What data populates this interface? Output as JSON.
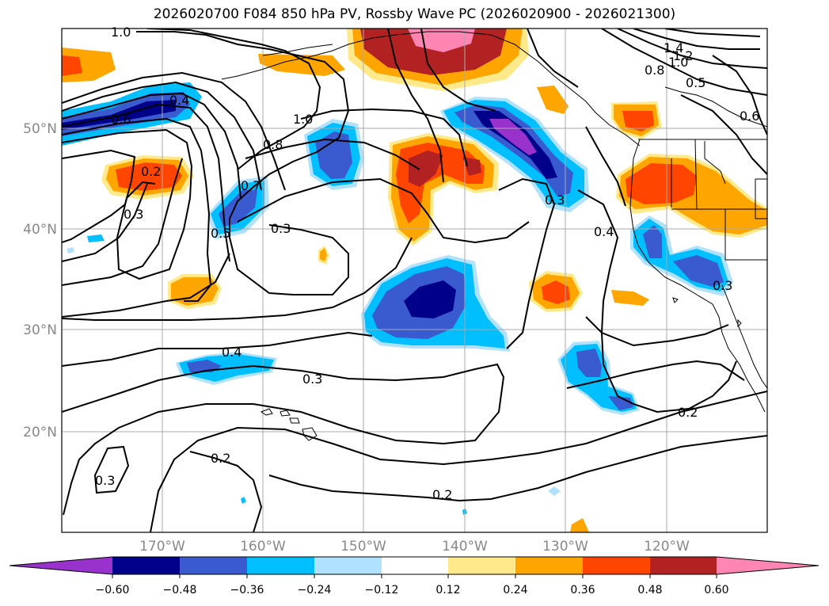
{
  "title": "2026020700 F084 850 hPa PV, Rossby Wave PC (2026020900 - 2026021300)",
  "colors": {
    "neg_060": "#9932cc",
    "neg_048": "#00008b",
    "neg_036": "#3a5bcf",
    "neg_024": "#00bfff",
    "neg_012": "#b0e2ff",
    "zero": "#ffffff",
    "pos_012": "#ffe98a",
    "pos_024": "#ffa500",
    "pos_036": "#ff4500",
    "pos_048": "#b22222",
    "pos_060": "#ff85b3",
    "contour": "#000000",
    "grid": "#aaaaaa",
    "coast": "#000000"
  },
  "lat_labels": [
    "50°N",
    "40°N",
    "30°N",
    "20°N"
  ],
  "lon_labels": [
    "170°W",
    "160°W",
    "150°W",
    "140°W",
    "130°W",
    "120°W"
  ],
  "colorbar_ticks": [
    "−0.60",
    "−0.48",
    "−0.36",
    "−0.24",
    "−0.12",
    "0.12",
    "0.24",
    "0.36",
    "0.48",
    "0.60"
  ],
  "contour_labels": {
    "l1": "1.0",
    "l2": "0.6",
    "l3": "0.4",
    "l4": "0.2",
    "l5": "0.3",
    "l6": "0.5",
    "l7": "0.7",
    "l8": "0.8",
    "l9": "1.0",
    "l10": "0.3",
    "l11": "0.4",
    "l12": "0.3",
    "l13": "0.3",
    "l14": "0.4",
    "l15": "0.2",
    "l16": "0.3",
    "l17": "0.2",
    "l18": "0.2",
    "l19": "1.4",
    "l20": "1.2",
    "l21": "1.0",
    "l22": "0.8",
    "l23": "0.5",
    "l24": "0.6",
    "l25": "0.3"
  }
}
